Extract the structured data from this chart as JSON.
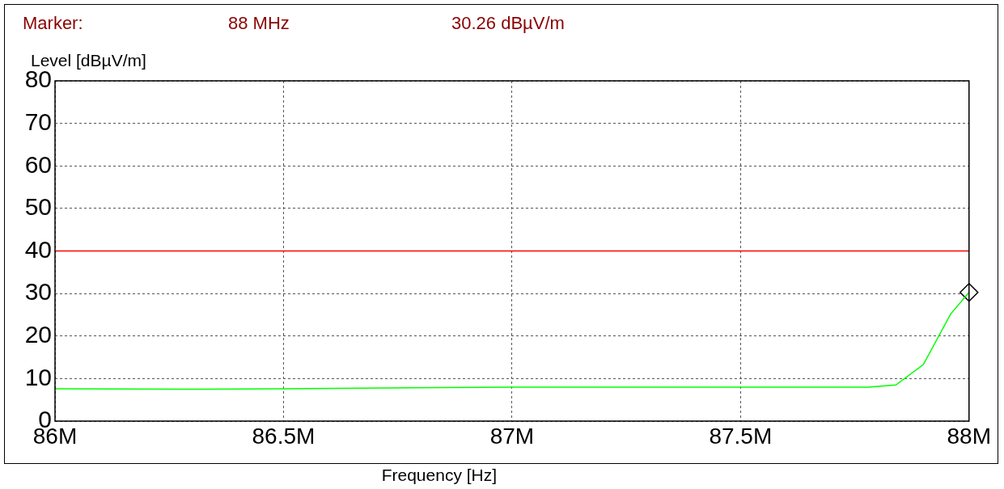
{
  "chart_data": {
    "type": "line",
    "xlabel": "Frequency [Hz]",
    "ylabel": "Level [dBµV/m]",
    "annotations": [
      "Marker:",
      "88 MHz",
      "30.26 dBµV/m"
    ],
    "xlim": [
      86000000,
      88000000
    ],
    "xticks": [
      {
        "value": 86000000,
        "label": "86M"
      },
      {
        "value": 86500000,
        "label": "86.5M"
      },
      {
        "value": 87000000,
        "label": "87M"
      },
      {
        "value": 87500000,
        "label": "87.5M"
      },
      {
        "value": 88000000,
        "label": "88M"
      }
    ],
    "ylim": [
      0,
      80
    ],
    "yticks": [
      0,
      10,
      20,
      30,
      40,
      50,
      60,
      70,
      80
    ],
    "grid": true,
    "ref_lines": [
      {
        "axis": "y",
        "value": 40,
        "color": "#ff0000"
      }
    ],
    "series": [
      {
        "type": "line",
        "color": "#00ff00",
        "marker": "none",
        "x": [
          86000000,
          86280000,
          86500000,
          87000000,
          87500000,
          87780000,
          87840000,
          87900000,
          87960000,
          88000000
        ],
        "values": [
          7.6,
          7.5,
          7.6,
          8.0,
          8.0,
          8.0,
          8.5,
          13.3,
          25.2,
          30.26
        ]
      },
      {
        "type": "scatter",
        "color": "#000000",
        "marker": "diamond",
        "x": [
          88000000
        ],
        "values": [
          30.26
        ]
      }
    ]
  }
}
